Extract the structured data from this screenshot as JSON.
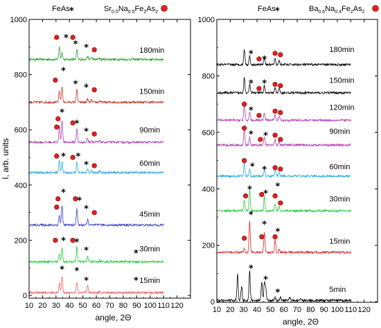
{
  "chart_data": [
    {
      "type": "line",
      "legend": {
        "phase1": "FeAs",
        "phase1_marker": "star",
        "phase2_text": "Sr0.5Na0.5Fe2As2",
        "phase2_parts": [
          [
            "Sr",
            ""
          ],
          [
            "0.5",
            "sub"
          ],
          [
            "Na",
            ""
          ],
          [
            "0.5",
            "sub"
          ],
          [
            "Fe",
            ""
          ],
          [
            "2",
            "sub"
          ],
          [
            "As",
            ""
          ],
          [
            "2",
            "sub"
          ]
        ],
        "phase2_marker": "red-dot",
        "placement": "top"
      },
      "xlabel": "angle, 2Θ",
      "ylabel": "I, arb. units",
      "xlim": [
        10,
        130
      ],
      "ylim": [
        -10,
        1000
      ],
      "xticks": [
        10,
        20,
        30,
        40,
        50,
        60,
        70,
        80,
        90,
        100,
        110,
        120
      ],
      "yticks": [
        0,
        200,
        400,
        600,
        800,
        1000
      ],
      "data_xrange": [
        10,
        110
      ],
      "series": [
        {
          "name": "180min",
          "color": "#2e9e2e",
          "baseline": 855,
          "peaks": [
            [
              32.5,
              45
            ],
            [
              34.5,
              25
            ],
            [
              45.5,
              35
            ],
            [
              53.5,
              12
            ],
            [
              56.5,
              8
            ],
            [
              62.5,
              5
            ]
          ]
        },
        {
          "name": "150min",
          "color": "#c0392b",
          "baseline": 700,
          "peaks": [
            [
              32.5,
              40
            ],
            [
              34.5,
              55
            ],
            [
              45.5,
              45
            ],
            [
              53.5,
              12
            ],
            [
              56.5,
              8
            ],
            [
              62.5,
              5
            ]
          ]
        },
        {
          "name": "90min",
          "color": "#b03fb0",
          "baseline": 555,
          "peaks": [
            [
              32.5,
              60
            ],
            [
              34.5,
              80
            ],
            [
              45.5,
              50
            ],
            [
              53.5,
              15
            ],
            [
              56.5,
              8
            ],
            [
              62.5,
              5
            ]
          ]
        },
        {
          "name": "60min",
          "color": "#1fa8e0",
          "baseline": 445,
          "peaks": [
            [
              32.5,
              45
            ],
            [
              34.5,
              40
            ],
            [
              45.5,
              40
            ],
            [
              53.5,
              12
            ],
            [
              56.5,
              8
            ],
            [
              62.5,
              5
            ]
          ]
        },
        {
          "name": "45min",
          "color": "#3a3ac8",
          "baseline": 255,
          "peaks": [
            [
              32.5,
              35
            ],
            [
              34.5,
              70
            ],
            [
              45.5,
              60
            ],
            [
              53.5,
              20
            ],
            [
              62.5,
              5
            ]
          ]
        },
        {
          "name": "30min",
          "color": "#22cc3a",
          "baseline": 122,
          "peaks": [
            [
              32.5,
              30
            ],
            [
              34.5,
              50
            ],
            [
              45.5,
              55
            ],
            [
              53.5,
              20
            ],
            [
              62.5,
              5
            ]
          ]
        },
        {
          "name": "15min",
          "color": "#f06060",
          "baseline": 10,
          "peaks": [
            [
              32.5,
              35
            ],
            [
              34.5,
              60
            ],
            [
              45.5,
              40
            ],
            [
              53.5,
              25
            ],
            [
              62.5,
              5
            ]
          ]
        }
      ],
      "labels": [
        {
          "text": "180min",
          "x": 92,
          "y": 880
        },
        {
          "text": "150min",
          "x": 92,
          "y": 730
        },
        {
          "text": "90min",
          "x": 92,
          "y": 590
        },
        {
          "text": "60min",
          "x": 92,
          "y": 470
        },
        {
          "text": "45min",
          "x": 92,
          "y": 285
        },
        {
          "text": "30min",
          "x": 92,
          "y": 160
        },
        {
          "text": "15min",
          "x": 92,
          "y": 45
        }
      ],
      "markers": [
        {
          "kind": "dot",
          "x": 30.5,
          "y": 935
        },
        {
          "kind": "star",
          "x": 37.5,
          "y": 935
        },
        {
          "kind": "dot",
          "x": 42.5,
          "y": 935
        },
        {
          "kind": "star",
          "x": 44.5,
          "y": 912
        },
        {
          "kind": "star",
          "x": 52.5,
          "y": 900
        },
        {
          "kind": "dot",
          "x": 58.5,
          "y": 890
        },
        {
          "kind": "star",
          "x": 35.5,
          "y": 815
        },
        {
          "kind": "dot",
          "x": 29.5,
          "y": 780
        },
        {
          "kind": "star",
          "x": 44.5,
          "y": 768
        },
        {
          "kind": "star",
          "x": 52.5,
          "y": 755
        },
        {
          "kind": "dot",
          "x": 58.5,
          "y": 745
        },
        {
          "kind": "star",
          "x": 34.5,
          "y": 665
        },
        {
          "kind": "dot",
          "x": 31.5,
          "y": 640
        },
        {
          "kind": "dot",
          "x": 30.5,
          "y": 610
        },
        {
          "kind": "dot",
          "x": 42.5,
          "y": 625
        },
        {
          "kind": "star",
          "x": 45.5,
          "y": 625
        },
        {
          "kind": "star",
          "x": 52.5,
          "y": 595
        },
        {
          "kind": "dot",
          "x": 58.5,
          "y": 585
        },
        {
          "kind": "dot",
          "x": 30.5,
          "y": 505
        },
        {
          "kind": "star",
          "x": 35.5,
          "y": 505
        },
        {
          "kind": "dot",
          "x": 42.5,
          "y": 500
        },
        {
          "kind": "star",
          "x": 46.5,
          "y": 505
        },
        {
          "kind": "star",
          "x": 52.5,
          "y": 475
        },
        {
          "kind": "dot",
          "x": 58.5,
          "y": 470
        },
        {
          "kind": "star",
          "x": 35.5,
          "y": 375
        },
        {
          "kind": "dot",
          "x": 31.5,
          "y": 350
        },
        {
          "kind": "dot",
          "x": 30.5,
          "y": 320
        },
        {
          "kind": "dot",
          "x": 44.5,
          "y": 350
        },
        {
          "kind": "star",
          "x": 47.5,
          "y": 345
        },
        {
          "kind": "star",
          "x": 52.5,
          "y": 315
        },
        {
          "kind": "dot",
          "x": 58.5,
          "y": 300
        },
        {
          "kind": "dot",
          "x": 29.5,
          "y": 200
        },
        {
          "kind": "star",
          "x": 35.5,
          "y": 200
        },
        {
          "kind": "dot",
          "x": 42.5,
          "y": 200
        },
        {
          "kind": "star",
          "x": 45.5,
          "y": 195
        },
        {
          "kind": "star",
          "x": 52.5,
          "y": 165
        },
        {
          "kind": "star",
          "x": 89.5,
          "y": 155
        },
        {
          "kind": "star",
          "x": 34.5,
          "y": 95
        },
        {
          "kind": "star",
          "x": 45.5,
          "y": 90
        },
        {
          "kind": "star",
          "x": 52.5,
          "y": 55
        },
        {
          "kind": "star",
          "x": 89.5,
          "y": 55
        }
      ]
    },
    {
      "type": "line",
      "legend": {
        "phase1": "FeAs",
        "phase1_marker": "star",
        "phase2_text": "Ba0.6Na0.4Fe2As2",
        "phase2_parts": [
          [
            "Ba",
            ""
          ],
          [
            "0.6",
            "sub"
          ],
          [
            "Na",
            ""
          ],
          [
            "0.4",
            "sub"
          ],
          [
            "Fe",
            ""
          ],
          [
            "2",
            "sub"
          ],
          [
            "As",
            ""
          ],
          [
            "2",
            "sub"
          ]
        ],
        "phase2_marker": "red-dot",
        "placement": "top"
      },
      "xlabel": "angle, 2Θ",
      "ylabel": "",
      "xlim": [
        10,
        130
      ],
      "ylim": [
        -2,
        1000
      ],
      "xticks": [
        10,
        20,
        30,
        40,
        50,
        60,
        70,
        80,
        90,
        100,
        110,
        120
      ],
      "yticks": [
        0,
        200,
        400,
        600,
        800,
        1000
      ],
      "data_xrange": [
        10,
        110
      ],
      "series": [
        {
          "name": "180min",
          "color": "#000000",
          "baseline": 840,
          "peaks": [
            [
              30.5,
              55
            ],
            [
              34.5,
              30
            ],
            [
              45.5,
              30
            ],
            [
              53.5,
              20
            ],
            [
              56.5,
              15
            ]
          ]
        },
        {
          "name": "150min",
          "color": "#000000",
          "baseline": 740,
          "peaks": [
            [
              30.5,
              55
            ],
            [
              34.5,
              30
            ],
            [
              45.5,
              25
            ],
            [
              53.5,
              20
            ],
            [
              56.5,
              15
            ]
          ]
        },
        {
          "name": "120min",
          "color": "#b03fb0",
          "baseline": 643,
          "peaks": [
            [
              30.5,
              55
            ],
            [
              34.5,
              30
            ],
            [
              45.5,
              25
            ],
            [
              53.5,
              20
            ],
            [
              56.5,
              15
            ]
          ]
        },
        {
          "name": "90min",
          "color": "#b03fb0",
          "baseline": 555,
          "peaks": [
            [
              30.5,
              55
            ],
            [
              34.5,
              30
            ],
            [
              45.5,
              30
            ],
            [
              53.5,
              20
            ],
            [
              56.5,
              15
            ]
          ]
        },
        {
          "name": "60min",
          "color": "#1fa8e0",
          "baseline": 445,
          "peaks": [
            [
              30.5,
              50
            ],
            [
              34.5,
              25
            ],
            [
              45.5,
              25
            ],
            [
              53.5,
              25
            ],
            [
              56.5,
              15
            ]
          ]
        },
        {
          "name": "30min",
          "color": "#22cc3a",
          "baseline": 322,
          "peaks": [
            [
              30.5,
              40
            ],
            [
              34.5,
              75
            ],
            [
              45.5,
              50
            ],
            [
              53.5,
              25
            ],
            [
              56.5,
              15
            ]
          ]
        },
        {
          "name": "15min",
          "color": "#e02020",
          "baseline": 175,
          "peaks": [
            [
              30.5,
              15
            ],
            [
              34.5,
              110
            ],
            [
              45.5,
              70
            ],
            [
              53.5,
              45
            ],
            [
              56.5,
              10
            ]
          ]
        },
        {
          "name": "5min",
          "color": "#000000",
          "baseline": 5,
          "peaks": [
            [
              25.5,
              95
            ],
            [
              28.5,
              50
            ],
            [
              34.5,
              105
            ],
            [
              43.5,
              65
            ],
            [
              45.5,
              60
            ],
            [
              46.5,
              45
            ],
            [
              53.5,
              15
            ],
            [
              57.5,
              12
            ],
            [
              64.5,
              10
            ],
            [
              72.5,
              8
            ]
          ]
        }
      ],
      "labels": [
        {
          "text": "180min",
          "x": 94,
          "y": 885
        },
        {
          "text": "150min",
          "x": 94,
          "y": 775
        },
        {
          "text": "120min",
          "x": 94,
          "y": 680
        },
        {
          "text": "90min",
          "x": 94,
          "y": 595
        },
        {
          "text": "60min",
          "x": 94,
          "y": 470
        },
        {
          "text": "30min",
          "x": 94,
          "y": 355
        },
        {
          "text": "15min",
          "x": 94,
          "y": 205
        },
        {
          "text": "5min",
          "x": 94,
          "y": 35
        }
      ],
      "markers": [
        {
          "kind": "star",
          "x": 35.5,
          "y": 880
        },
        {
          "kind": "dot",
          "x": 41.5,
          "y": 860
        },
        {
          "kind": "star",
          "x": 45.5,
          "y": 860
        },
        {
          "kind": "dot",
          "x": 53.5,
          "y": 880
        },
        {
          "kind": "dot",
          "x": 57.5,
          "y": 875
        },
        {
          "kind": "star",
          "x": 35.5,
          "y": 775
        },
        {
          "kind": "dot",
          "x": 41.5,
          "y": 755
        },
        {
          "kind": "star",
          "x": 45.5,
          "y": 775
        },
        {
          "kind": "dot",
          "x": 53.5,
          "y": 770
        },
        {
          "kind": "dot",
          "x": 57.5,
          "y": 765
        },
        {
          "kind": "dot",
          "x": 30.5,
          "y": 700
        },
        {
          "kind": "star",
          "x": 35.5,
          "y": 680
        },
        {
          "kind": "dot",
          "x": 41.5,
          "y": 660
        },
        {
          "kind": "dot",
          "x": 53.5,
          "y": 675
        },
        {
          "kind": "dot",
          "x": 57.5,
          "y": 670
        },
        {
          "kind": "dot",
          "x": 30.5,
          "y": 615
        },
        {
          "kind": "star",
          "x": 35.5,
          "y": 595
        },
        {
          "kind": "dot",
          "x": 42.5,
          "y": 575
        },
        {
          "kind": "star",
          "x": 46.5,
          "y": 590
        },
        {
          "kind": "dot",
          "x": 53.5,
          "y": 590
        },
        {
          "kind": "dot",
          "x": 57.5,
          "y": 575
        },
        {
          "kind": "dot",
          "x": 30.5,
          "y": 500
        },
        {
          "kind": "star",
          "x": 36.5,
          "y": 480
        },
        {
          "kind": "star",
          "x": 45.5,
          "y": 470
        },
        {
          "kind": "dot",
          "x": 53.5,
          "y": 475
        },
        {
          "kind": "dot",
          "x": 57.5,
          "y": 470
        },
        {
          "kind": "star",
          "x": 34.5,
          "y": 400
        },
        {
          "kind": "dot",
          "x": 31.5,
          "y": 375
        },
        {
          "kind": "dot",
          "x": 43.5,
          "y": 380
        },
        {
          "kind": "star",
          "x": 46.5,
          "y": 385
        },
        {
          "kind": "star",
          "x": 55.5,
          "y": 410
        },
        {
          "kind": "dot",
          "x": 53.5,
          "y": 375
        },
        {
          "kind": "dot",
          "x": 57.5,
          "y": 350
        },
        {
          "kind": "star",
          "x": 35.5,
          "y": 310
        },
        {
          "kind": "star",
          "x": 45.5,
          "y": 275
        },
        {
          "kind": "dot",
          "x": 30.5,
          "y": 225
        },
        {
          "kind": "dot",
          "x": 43.5,
          "y": 230
        },
        {
          "kind": "star",
          "x": 55.5,
          "y": 250
        },
        {
          "kind": "dot",
          "x": 53.5,
          "y": 230
        },
        {
          "kind": "star",
          "x": 35.5,
          "y": 120
        },
        {
          "kind": "star",
          "x": 46.5,
          "y": 80
        },
        {
          "kind": "star",
          "x": 55.5,
          "y": 35
        }
      ]
    }
  ]
}
